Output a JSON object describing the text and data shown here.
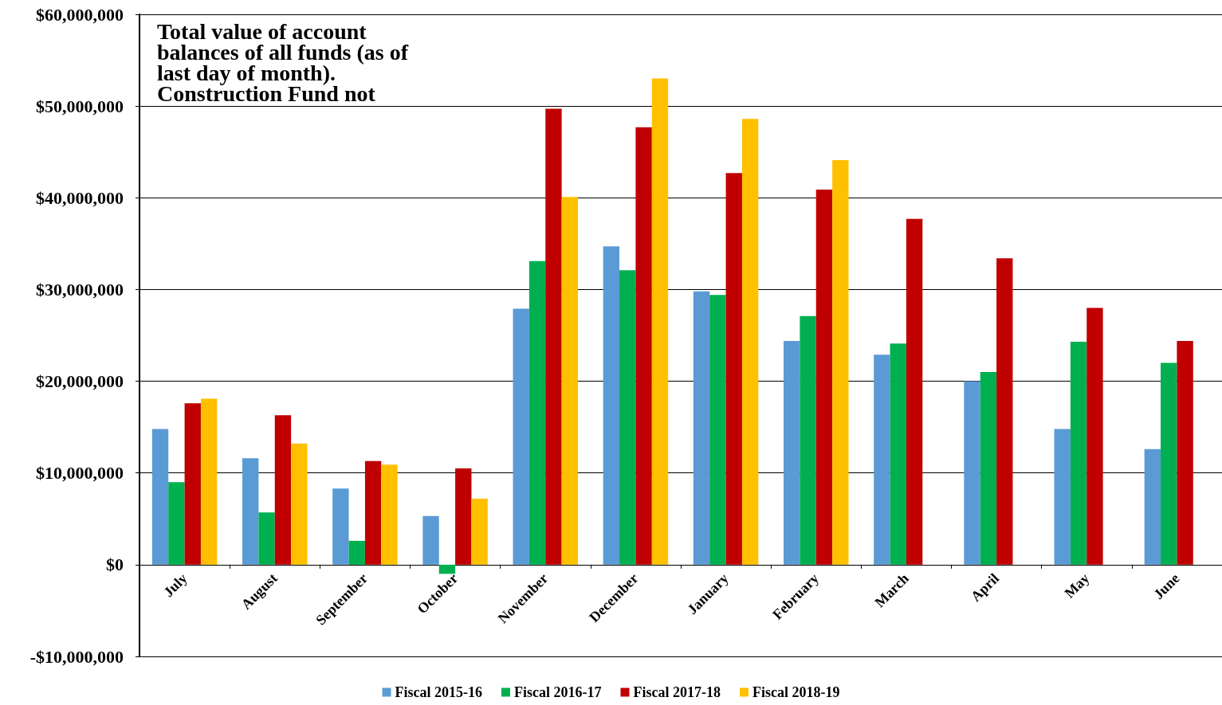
{
  "chart_data": {
    "type": "bar",
    "title": "Total value of account balances of all funds (as of last day of month). Construction Fund not",
    "categories": [
      "July",
      "August",
      "September",
      "October",
      "November",
      "December",
      "January",
      "February",
      "March",
      "April",
      "May",
      "June"
    ],
    "series": [
      {
        "name": "Fiscal 2015-16",
        "color": "#5b9bd5",
        "values": [
          14800000,
          11600000,
          8300000,
          5300000,
          27900000,
          34700000,
          29800000,
          24400000,
          22900000,
          20000000,
          14800000,
          12600000
        ]
      },
      {
        "name": "Fiscal 2016-17",
        "color": "#00b050",
        "values": [
          9000000,
          5700000,
          2600000,
          -1000000,
          33100000,
          32100000,
          29400000,
          27100000,
          24100000,
          21000000,
          24300000,
          22000000
        ]
      },
      {
        "name": "Fiscal 2017-18",
        "color": "#c00000",
        "values": [
          17600000,
          16300000,
          11300000,
          10500000,
          49700000,
          47700000,
          42700000,
          40900000,
          37700000,
          33400000,
          28000000,
          24400000
        ]
      },
      {
        "name": "Fiscal 2018-19",
        "color": "#ffc000",
        "values": [
          18100000,
          13200000,
          10900000,
          7200000,
          40100000,
          53000000,
          48600000,
          44100000,
          null,
          null,
          null,
          null
        ]
      }
    ],
    "ylim": [
      -10000000,
      60000000
    ],
    "yticks": [
      {
        "value": -10000000,
        "label": "-$10,000,000"
      },
      {
        "value": 0,
        "label": "$0"
      },
      {
        "value": 10000000,
        "label": "$10,000,000"
      },
      {
        "value": 20000000,
        "label": "$20,000,000"
      },
      {
        "value": 30000000,
        "label": "$30,000,000"
      },
      {
        "value": 40000000,
        "label": "$40,000,000"
      },
      {
        "value": 50000000,
        "label": "$50,000,000"
      },
      {
        "value": 60000000,
        "label": "$60,000,000"
      }
    ],
    "grid": "y",
    "legend": "bottom"
  }
}
